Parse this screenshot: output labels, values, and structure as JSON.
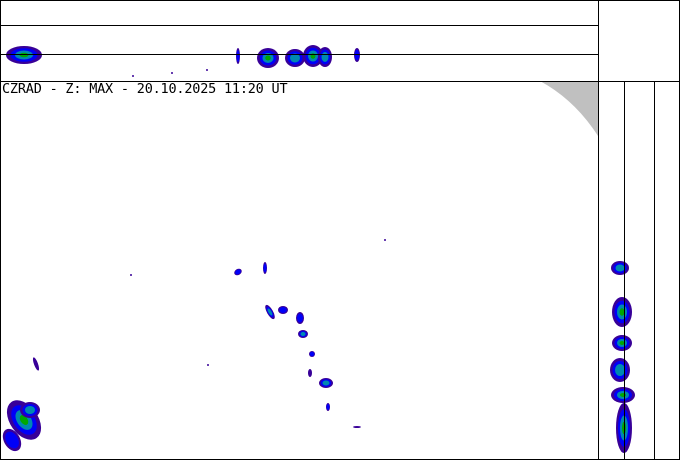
{
  "title": "CZRAD - Z: MAX - 20.10.2025 11:20 UT",
  "colors": {
    "level1": "#380098",
    "level2": "#0000f8",
    "level3": "#0088b0",
    "level4": "#00a800",
    "out_of_range": "#c0c0c0",
    "frame": "#000000"
  }
}
